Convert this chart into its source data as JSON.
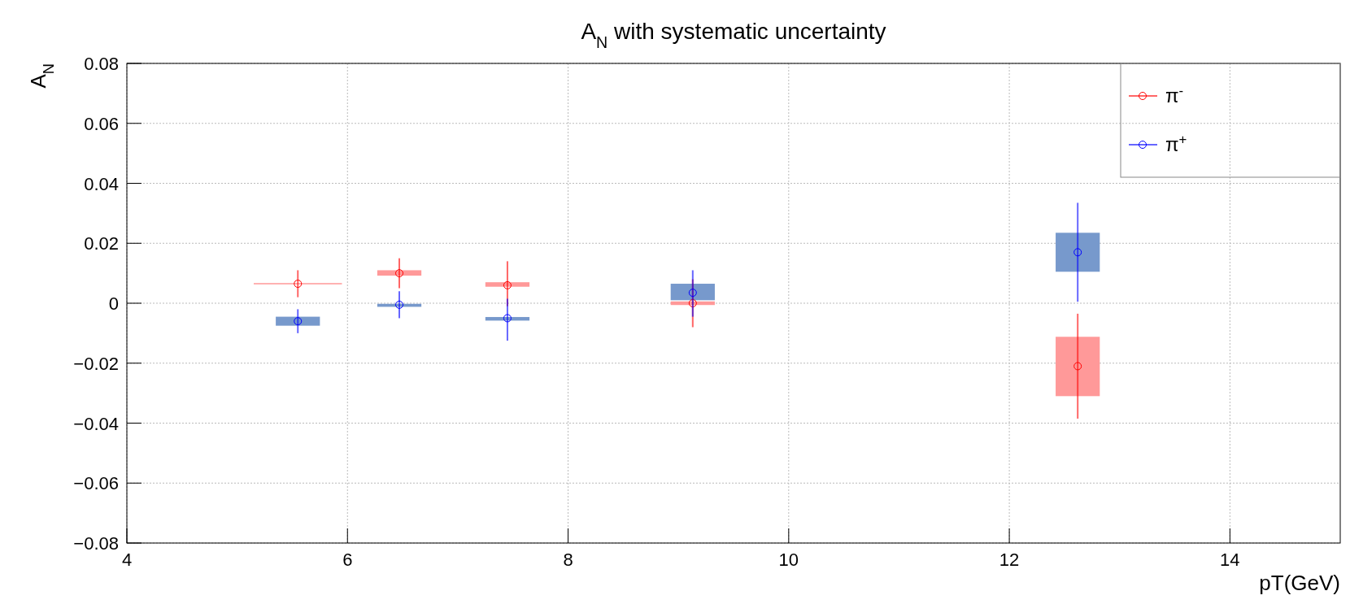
{
  "chart_data": {
    "type": "scatter",
    "title": "A$_{N}$ with systematic uncertainty",
    "xlabel": "pT(GeV)",
    "ylabel": "A$_{N}$",
    "xlim": [
      4,
      15
    ],
    "xticks": [
      4,
      6,
      8,
      10,
      12,
      14
    ],
    "ylim": [
      -0.08,
      0.08
    ],
    "yticks": [
      {
        "value": -0.08,
        "label": "−0.08"
      },
      {
        "value": -0.06,
        "label": "−0.06"
      },
      {
        "value": -0.04,
        "label": "−0.04"
      },
      {
        "value": -0.02,
        "label": "−0.02"
      },
      0,
      0.02,
      0.04,
      0.06,
      0.08
    ],
    "grid": true,
    "legend": "top right",
    "marker": "circle",
    "series": [
      {
        "type": "bar",
        "color": "#ff9999",
        "x": [
          6.47,
          7.45,
          9.13,
          12.62
        ],
        "base": [
          0.0092,
          0.0055,
          -0.0006,
          -0.031
        ],
        "values": [
          0.0018,
          0.0015,
          0.0012,
          0.0198
        ]
      },
      {
        "type": "bar",
        "color": "#7799cc",
        "x": [
          5.55,
          6.47,
          7.45,
          9.13,
          12.62
        ],
        "base": [
          -0.0075,
          -0.0012,
          -0.0058,
          0.001,
          0.0105
        ],
        "values": [
          0.003,
          0.001,
          0.0012,
          0.0055,
          0.013
        ]
      },
      {
        "name": "π$^{-}$",
        "color": "#ff0000",
        "x": [
          5.55,
          6.47,
          7.45,
          9.13,
          12.62
        ],
        "values": [
          0.0065,
          0.01,
          0.006,
          0.0,
          -0.021
        ],
        "errors": [
          [
            0.002,
            0.011
          ],
          [
            0.005,
            0.015
          ],
          [
            -0.001,
            0.014
          ],
          [
            -0.008,
            0.008
          ],
          [
            -0.0385,
            -0.0035
          ]
        ],
        "xerrors": [
          0.4,
          null,
          null,
          null,
          null
        ]
      },
      {
        "name": "π$^{+}$",
        "color": "#0000ff",
        "x": [
          5.55,
          6.47,
          7.45,
          9.13,
          12.62
        ],
        "values": [
          -0.006,
          -0.0005,
          -0.005,
          0.0035,
          0.017
        ],
        "errors": [
          [
            -0.01,
            -0.002
          ],
          [
            -0.005,
            0.004
          ],
          [
            -0.0125,
            0.0015
          ],
          [
            -0.0045,
            0.011
          ],
          [
            0.0005,
            0.0335
          ]
        ]
      }
    ]
  }
}
